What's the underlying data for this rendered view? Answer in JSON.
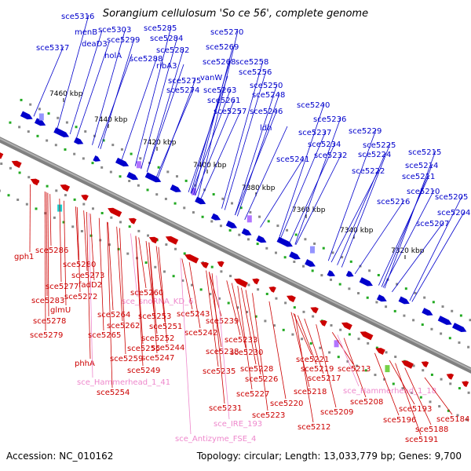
{
  "title": "Sorangium cellulosum 'So ce 56', complete genome",
  "footer": {
    "accession": "Accession: NC_010162",
    "summary": "Topology: circular; Length: 13,033,779 bp; Genes: 9,700"
  },
  "colors": {
    "forward": "#0000cc",
    "reverse": "#cc0000",
    "rna": "#ee88cc",
    "backbone": "#808080"
  },
  "scale_labels": [
    "7460 kbp",
    "7440 kbp",
    "7420 kbp",
    "7400 kbp",
    "7380 kbp",
    "7360 kbp",
    "7340 kbp",
    "7320 kbp"
  ],
  "top_labels": [
    "sce5316",
    "sce5317",
    "menB",
    "deaD3",
    "sce5303",
    "sce5299",
    "holA",
    "sce5285",
    "sce5284",
    "sce5288",
    "sce5282",
    "ribA3",
    "sce5275",
    "sce5274",
    "sce5270",
    "sce5269",
    "sce5268",
    "vanW",
    "sce5263",
    "sce5261",
    "sce5257",
    "sce5258",
    "sce5256",
    "sce5250",
    "sce5248",
    "sce5246",
    "ldh",
    "sce5240",
    "sce5236",
    "sce5237",
    "sce5234",
    "sce5232",
    "sce5241",
    "sce5229",
    "sce5225",
    "sce5224",
    "sce5222",
    "sce5215",
    "sce5214",
    "sce5211",
    "sce5210",
    "sce5216",
    "sce5205",
    "sce5204",
    "sce5207"
  ],
  "bottom_labels": [
    "gph1",
    "sce5286",
    "sce5280",
    "sce5277",
    "sce5283",
    "sce5273",
    "fadD2",
    "sce5272",
    "glmU",
    "sce5278",
    "sce5279",
    "sce5264",
    "sce5262",
    "sce5265",
    "sce5260",
    "sce_snoRNA_KD_6",
    "sce5253",
    "sce5251",
    "sce5243",
    "sce5252",
    "sce5255",
    "sce5244",
    "sce5242",
    "sce5247",
    "sce5259",
    "sce5249",
    "phhA",
    "sce_Hammerhead_1_41",
    "sce5254",
    "sce5239",
    "sce5238",
    "sce5235",
    "sce5233",
    "sce5230",
    "sce5228",
    "sce5226",
    "sce5227",
    "sce5231",
    "sce_IRE_193",
    "sce5223",
    "sce5220",
    "sce_Antizyme_FSE_4",
    "sce5221",
    "sce5219",
    "sce5217",
    "sce5218",
    "sce5213",
    "sce5212",
    "sce5209",
    "sce5208",
    "sce_Hammerhead_1_18",
    "sce5193",
    "sce5196",
    "sce5188",
    "sce5184",
    "sce5191"
  ]
}
